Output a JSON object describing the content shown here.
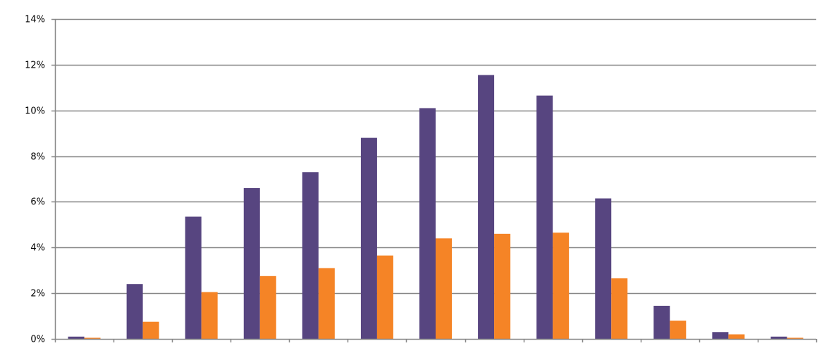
{
  "colors": {
    "series_1": "#574580",
    "series_2": "#f58426",
    "grid": "#868686",
    "axis": "#868686",
    "background": "#ffffff"
  },
  "chart_data": {
    "type": "bar",
    "title": "",
    "xlabel": "",
    "ylabel": "",
    "ylim": [
      0,
      14
    ],
    "y_unit": "%",
    "y_ticks": [
      0,
      2,
      4,
      6,
      8,
      10,
      12,
      14
    ],
    "y_tick_labels": [
      "0%",
      "2%",
      "4%",
      "6%",
      "8%",
      "10%",
      "12%",
      "14%"
    ],
    "grid": true,
    "legend": "none",
    "category_count": 13,
    "series": [
      {
        "values": [
          0.1,
          2.4,
          5.35,
          6.6,
          7.3,
          8.8,
          10.1,
          11.55,
          10.65,
          6.15,
          1.45,
          0.3,
          0.1
        ]
      },
      {
        "values": [
          0.05,
          0.75,
          2.05,
          2.75,
          3.1,
          3.65,
          4.4,
          4.6,
          4.65,
          2.65,
          0.8,
          0.2,
          0.05
        ]
      }
    ]
  }
}
